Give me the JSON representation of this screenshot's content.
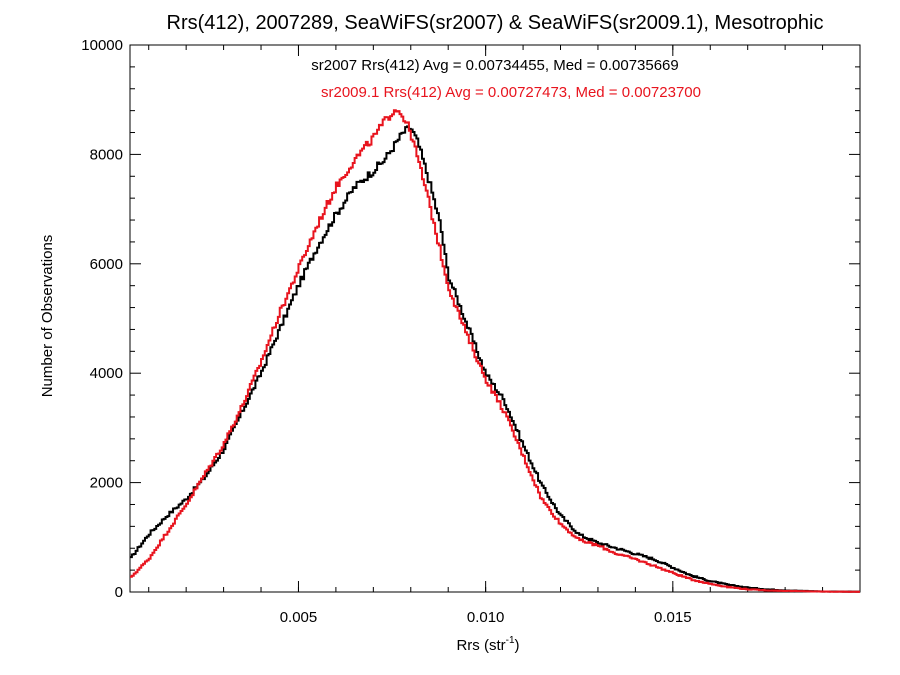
{
  "chart_data": {
    "type": "line",
    "step": true,
    "title": "Rrs(412), 2007289, SeaWiFS(sr2007) & SeaWiFS(sr2009.1), Mesotrophic",
    "xlabel": "Rrs (str",
    "xlabel_sup": "-1",
    "xlabel_close": ")",
    "ylabel": "Number of Observations",
    "xlim": [
      0.0005,
      0.02
    ],
    "ylim": [
      0,
      10000
    ],
    "xticks": [
      0.005,
      0.01,
      0.015
    ],
    "xtick_labels": [
      "0.005",
      "0.010",
      "0.015"
    ],
    "yticks": [
      0,
      2000,
      4000,
      6000,
      8000,
      10000
    ],
    "ytick_labels": [
      "0",
      "2000",
      "4000",
      "6000",
      "8000",
      "10000"
    ],
    "grid": false,
    "annotations": [
      {
        "text": "sr2007 Rrs(412) Avg = 0.00734455, Med = 0.00735669",
        "color": "#000000"
      },
      {
        "text": "sr2009.1 Rrs(412) Avg = 0.00727473, Med = 0.00723700",
        "color": "#e8141e"
      }
    ],
    "series": [
      {
        "color": "#000000",
        "x": [
          0.0005,
          0.001,
          0.0015,
          0.002,
          0.0025,
          0.003,
          0.0035,
          0.004,
          0.0045,
          0.005,
          0.0055,
          0.006,
          0.0065,
          0.007,
          0.0073,
          0.0076,
          0.0078,
          0.008,
          0.0082,
          0.0085,
          0.0088,
          0.009,
          0.0095,
          0.01,
          0.0105,
          0.011,
          0.0115,
          0.012,
          0.0125,
          0.013,
          0.0135,
          0.014,
          0.0145,
          0.015,
          0.0155,
          0.016,
          0.0165,
          0.017,
          0.0175,
          0.018,
          0.019,
          0.02
        ],
        "y": [
          600,
          1050,
          1400,
          1700,
          2100,
          2600,
          3300,
          4000,
          4800,
          5600,
          6300,
          6900,
          7400,
          7700,
          7900,
          8200,
          8400,
          8500,
          8200,
          7500,
          6700,
          5800,
          4900,
          4000,
          3500,
          2700,
          1950,
          1400,
          1050,
          900,
          800,
          700,
          600,
          450,
          300,
          200,
          130,
          80,
          50,
          30,
          10,
          5
        ]
      },
      {
        "color": "#e8141e",
        "x": [
          0.0005,
          0.001,
          0.0015,
          0.002,
          0.0025,
          0.003,
          0.0035,
          0.004,
          0.0045,
          0.005,
          0.0055,
          0.006,
          0.0065,
          0.007,
          0.0073,
          0.0076,
          0.0078,
          0.008,
          0.0082,
          0.0085,
          0.0088,
          0.009,
          0.0095,
          0.01,
          0.0105,
          0.011,
          0.0115,
          0.012,
          0.0125,
          0.013,
          0.0135,
          0.014,
          0.0145,
          0.015,
          0.0155,
          0.016,
          0.0165,
          0.017,
          0.0175,
          0.018,
          0.019,
          0.02
        ],
        "y": [
          250,
          600,
          1100,
          1600,
          2150,
          2700,
          3400,
          4200,
          5100,
          5900,
          6700,
          7400,
          7900,
          8300,
          8600,
          8850,
          8700,
          8400,
          7900,
          7100,
          6200,
          5600,
          4700,
          3900,
          3300,
          2500,
          1700,
          1250,
          950,
          850,
          700,
          600,
          480,
          350,
          230,
          150,
          90,
          50,
          30,
          20,
          8,
          3
        ]
      }
    ]
  }
}
